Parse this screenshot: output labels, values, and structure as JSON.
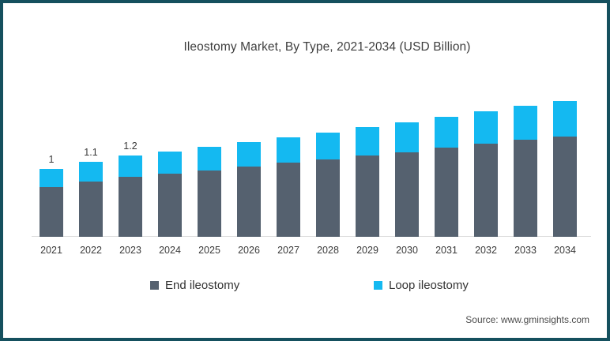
{
  "title": "Ileostomy Market, By Type, 2021-2034 (USD Billion)",
  "source": "Source: www.gminsights.com",
  "frame": {
    "border_color": "#15505e"
  },
  "chart_data": {
    "type": "bar",
    "stacked": true,
    "title": "Ileostomy Market, By Type, 2021-2034 (USD Billion)",
    "xlabel": "",
    "ylabel": "",
    "unit_label": "USD Billion",
    "ylim": [
      0,
      2.2
    ],
    "gridlines": false,
    "y_axis_shown": false,
    "legend_position": "bottom",
    "categories": [
      "2021",
      "2022",
      "2023",
      "2024",
      "2025",
      "2026",
      "2027",
      "2028",
      "2029",
      "2030",
      "2031",
      "2032",
      "2033",
      "2034"
    ],
    "series": [
      {
        "name": "End ileostomy",
        "color": "#55616f",
        "values": [
          0.73,
          0.81,
          0.89,
          0.93,
          0.98,
          1.04,
          1.09,
          1.14,
          1.2,
          1.25,
          1.31,
          1.37,
          1.43,
          1.48
        ]
      },
      {
        "name": "Loop ileostomy",
        "color": "#14b9f1",
        "values": [
          0.27,
          0.29,
          0.31,
          0.33,
          0.35,
          0.36,
          0.38,
          0.4,
          0.42,
          0.44,
          0.46,
          0.48,
          0.5,
          0.52
        ]
      }
    ],
    "totals": [
      1.0,
      1.1,
      1.2,
      1.26,
      1.33,
      1.4,
      1.47,
      1.54,
      1.62,
      1.69,
      1.77,
      1.85,
      1.93,
      2.0
    ],
    "bar_labels": [
      "1",
      "1.1",
      "1.2",
      "",
      "",
      "",
      "",
      "",
      "",
      "",
      "",
      "",
      "",
      ""
    ]
  }
}
